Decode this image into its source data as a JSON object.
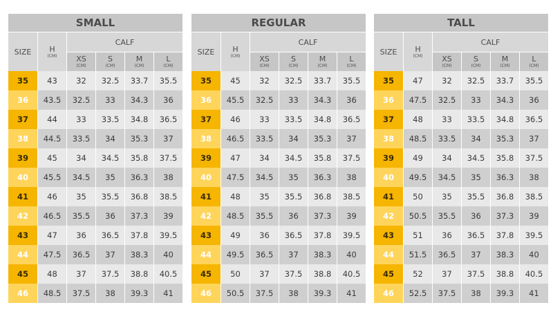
{
  "headers": {
    "size": "SIZE",
    "h": "H",
    "calf": "CALF",
    "cm": "(CM)",
    "xs": "XS",
    "s": "S",
    "m": "M",
    "l": "L"
  },
  "colors": {
    "size_odd": "#f5b500",
    "size_even": "#ffd45a",
    "cell_odd": "#e9e9e9",
    "cell_even": "#cfcfcf",
    "header": "#c6c6c6"
  },
  "tables": [
    {
      "title": "SMALL",
      "rows": [
        [
          "35",
          "43",
          "32",
          "32.5",
          "33.7",
          "35.5"
        ],
        [
          "36",
          "43.5",
          "32.5",
          "33",
          "34.3",
          "36"
        ],
        [
          "37",
          "44",
          "33",
          "33.5",
          "34.8",
          "36.5"
        ],
        [
          "38",
          "44.5",
          "33.5",
          "34",
          "35.3",
          "37"
        ],
        [
          "39",
          "45",
          "34",
          "34.5",
          "35.8",
          "37.5"
        ],
        [
          "40",
          "45.5",
          "34.5",
          "35",
          "36.3",
          "38"
        ],
        [
          "41",
          "46",
          "35",
          "35.5",
          "36.8",
          "38.5"
        ],
        [
          "42",
          "46.5",
          "35.5",
          "36",
          "37.3",
          "39"
        ],
        [
          "43",
          "47",
          "36",
          "36.5",
          "37.8",
          "39.5"
        ],
        [
          "44",
          "47.5",
          "36.5",
          "37",
          "38.3",
          "40"
        ],
        [
          "45",
          "48",
          "37",
          "37.5",
          "38.8",
          "40.5"
        ],
        [
          "46",
          "48.5",
          "37.5",
          "38",
          "39.3",
          "41"
        ]
      ]
    },
    {
      "title": "REGULAR",
      "rows": [
        [
          "35",
          "45",
          "32",
          "32.5",
          "33.7",
          "35.5"
        ],
        [
          "36",
          "45.5",
          "32.5",
          "33",
          "34.3",
          "36"
        ],
        [
          "37",
          "46",
          "33",
          "33.5",
          "34.8",
          "36.5"
        ],
        [
          "38",
          "46.5",
          "33.5",
          "34",
          "35.3",
          "37"
        ],
        [
          "39",
          "47",
          "34",
          "34.5",
          "35.8",
          "37.5"
        ],
        [
          "40",
          "47.5",
          "34.5",
          "35",
          "36.3",
          "38"
        ],
        [
          "41",
          "48",
          "35",
          "35.5",
          "36.8",
          "38.5"
        ],
        [
          "42",
          "48.5",
          "35.5",
          "36",
          "37.3",
          "39"
        ],
        [
          "43",
          "49",
          "36",
          "36.5",
          "37.8",
          "39.5"
        ],
        [
          "44",
          "49.5",
          "36.5",
          "37",
          "38.3",
          "40"
        ],
        [
          "45",
          "50",
          "37",
          "37.5",
          "38.8",
          "40.5"
        ],
        [
          "46",
          "50.5",
          "37.5",
          "38",
          "39.3",
          "41"
        ]
      ]
    },
    {
      "title": "TALL",
      "rows": [
        [
          "35",
          "47",
          "32",
          "32.5",
          "33.7",
          "35.5"
        ],
        [
          "36",
          "47.5",
          "32.5",
          "33",
          "34.3",
          "36"
        ],
        [
          "37",
          "48",
          "33",
          "33.5",
          "34.8",
          "36.5"
        ],
        [
          "38",
          "48.5",
          "33.5",
          "34",
          "35.3",
          "37"
        ],
        [
          "39",
          "49",
          "34",
          "34.5",
          "35.8",
          "37.5"
        ],
        [
          "40",
          "49.5",
          "34.5",
          "35",
          "36.3",
          "38"
        ],
        [
          "41",
          "50",
          "35",
          "35.5",
          "36.8",
          "38.5"
        ],
        [
          "42",
          "50.5",
          "35.5",
          "36",
          "37.3",
          "39"
        ],
        [
          "43",
          "51",
          "36",
          "36.5",
          "37.8",
          "39.5"
        ],
        [
          "44",
          "51.5",
          "36.5",
          "37",
          "38.3",
          "40"
        ],
        [
          "45",
          "52",
          "37",
          "37.5",
          "38.8",
          "40.5"
        ],
        [
          "46",
          "52.5",
          "37.5",
          "38",
          "39.3",
          "41"
        ]
      ]
    }
  ]
}
